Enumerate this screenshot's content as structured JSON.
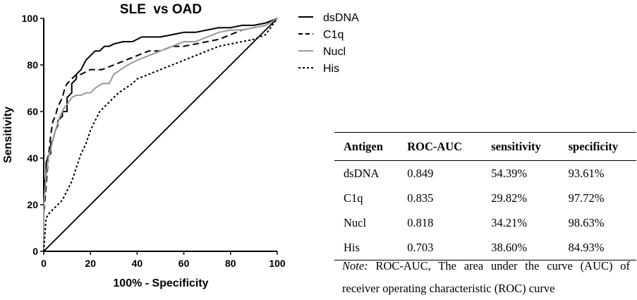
{
  "chart_data": {
    "type": "line",
    "title": "SLE  vs OAD",
    "xlabel": "100% - Specificity",
    "ylabel": "Sensitivity",
    "xlim": [
      0,
      100
    ],
    "ylim": [
      0,
      100
    ],
    "xticks": [
      "0",
      "20",
      "40",
      "60",
      "80",
      "100"
    ],
    "yticks": [
      "0",
      "20",
      "40",
      "60",
      "80",
      "100"
    ],
    "grid": false,
    "legend_position": "right-top",
    "reference_line": {
      "x": [
        0,
        100
      ],
      "y": [
        0,
        100
      ]
    },
    "series": [
      {
        "name": "dsDNA",
        "style": "solid",
        "color": "#000000",
        "x": [
          0,
          0,
          1,
          1,
          2,
          3,
          3,
          4,
          5,
          6,
          6,
          8,
          8,
          10,
          10,
          12,
          12,
          14,
          14,
          16,
          18,
          20,
          22,
          24,
          26,
          28,
          30,
          34,
          38,
          42,
          46,
          50,
          55,
          60,
          65,
          70,
          75,
          80,
          85,
          90,
          95,
          100
        ],
        "y": [
          0,
          25,
          33,
          38,
          41,
          42,
          46,
          48,
          52,
          54,
          56,
          58,
          60,
          60,
          66,
          68,
          72,
          74,
          76,
          78,
          82,
          84,
          86,
          86,
          88,
          88,
          89,
          90,
          90,
          92,
          92,
          92,
          93,
          94,
          94,
          95,
          96,
          96,
          97,
          97,
          98,
          100
        ]
      },
      {
        "name": "C1q",
        "style": "dashed",
        "color": "#000000",
        "x": [
          0,
          0,
          1,
          2,
          3,
          4,
          5,
          6,
          7,
          8,
          9,
          10,
          12,
          14,
          16,
          20,
          25,
          30,
          35,
          40,
          45,
          50,
          55,
          60,
          65,
          70,
          75,
          80,
          85,
          90,
          95,
          100
        ],
        "y": [
          0,
          16,
          28,
          40,
          50,
          56,
          58,
          62,
          64,
          66,
          70,
          72,
          74,
          76,
          76,
          78,
          78,
          80,
          82,
          84,
          86,
          86,
          88,
          88,
          89,
          90,
          91,
          93,
          95,
          96,
          97,
          100
        ]
      },
      {
        "name": "Nucl",
        "style": "solid",
        "color": "#9a9a9a",
        "x": [
          0,
          0,
          1,
          2,
          3,
          4,
          5,
          6,
          7,
          8,
          9,
          10,
          12,
          14,
          16,
          18,
          20,
          22,
          25,
          28,
          30,
          33,
          36,
          40,
          45,
          50,
          55,
          60,
          65,
          70,
          75,
          80,
          85,
          90,
          95,
          100
        ],
        "y": [
          0,
          20,
          32,
          40,
          44,
          48,
          52,
          55,
          58,
          60,
          62,
          63,
          66,
          67,
          67,
          68,
          68,
          70,
          72,
          72,
          76,
          78,
          80,
          82,
          84,
          86,
          88,
          90,
          90,
          92,
          94,
          95,
          95,
          96,
          97,
          100
        ]
      },
      {
        "name": "His",
        "style": "dotted",
        "color": "#000000",
        "x": [
          0,
          1,
          2,
          4,
          6,
          8,
          10,
          12,
          14,
          16,
          18,
          20,
          22,
          24,
          26,
          28,
          30,
          32,
          35,
          38,
          40,
          45,
          50,
          55,
          60,
          65,
          70,
          75,
          80,
          85,
          90,
          95,
          100
        ],
        "y": [
          0,
          14,
          16,
          18,
          20,
          22,
          26,
          30,
          36,
          42,
          46,
          52,
          56,
          60,
          62,
          64,
          66,
          68,
          70,
          72,
          74,
          76,
          78,
          80,
          82,
          84,
          86,
          88,
          89,
          90,
          91,
          93,
          100
        ]
      }
    ]
  },
  "table": {
    "headers": [
      "Antigen",
      "ROC-AUC",
      "sensitivity",
      "specificity"
    ],
    "rows": [
      [
        "dsDNA",
        "0.849",
        "54.39%",
        "93.61%"
      ],
      [
        "C1q",
        "0.835",
        "29.82%",
        "97.72%"
      ],
      [
        "Nucl",
        "0.818",
        "34.21%",
        "98.63%"
      ],
      [
        "His",
        "0.703",
        "38.60%",
        "84.93%"
      ]
    ]
  },
  "note": {
    "label": "Note:",
    "text": " ROC-AUC, The area under the curve (AUC) of receiver operating characteristic (ROC) curve"
  }
}
